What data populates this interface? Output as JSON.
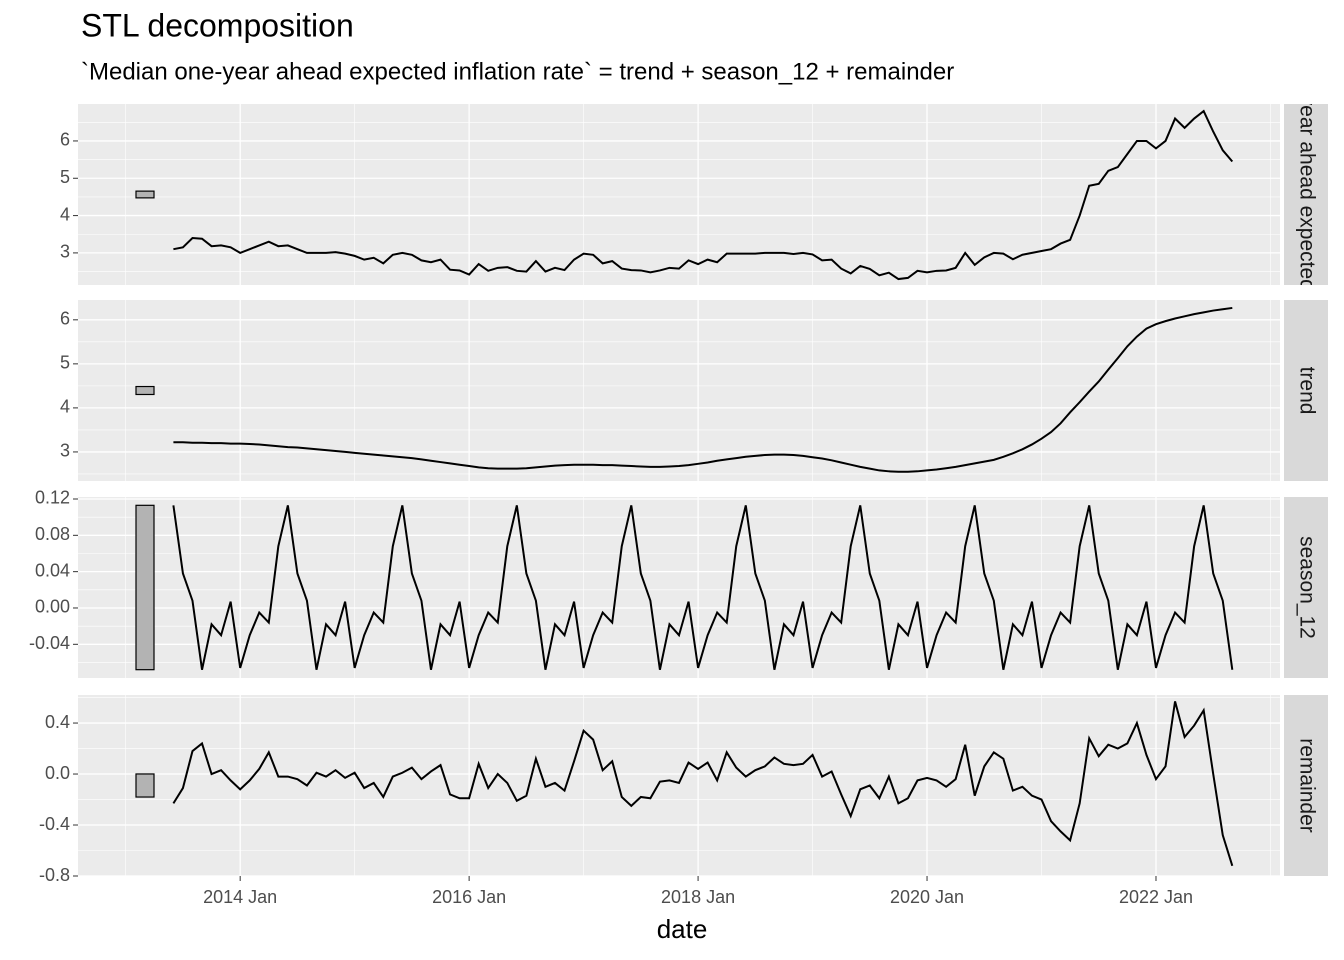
{
  "chart_data": {
    "type": "line",
    "title": "STL decomposition",
    "subtitle": "`Median one-year ahead expected inflation rate` = trend + season_12 + remainder",
    "x_label": "date",
    "color": "#000000",
    "grid": true,
    "x": [
      "2013 Jun",
      "2013 Jul",
      "2013 Aug",
      "2013 Sep",
      "2013 Oct",
      "2013 Nov",
      "2013 Dec",
      "2014 Jan",
      "2014 Feb",
      "2014 Mar",
      "2014 Apr",
      "2014 May",
      "2014 Jun",
      "2014 Jul",
      "2014 Aug",
      "2014 Sep",
      "2014 Oct",
      "2014 Nov",
      "2014 Dec",
      "2015 Jan",
      "2015 Feb",
      "2015 Mar",
      "2015 Apr",
      "2015 May",
      "2015 Jun",
      "2015 Jul",
      "2015 Aug",
      "2015 Sep",
      "2015 Oct",
      "2015 Nov",
      "2015 Dec",
      "2016 Jan",
      "2016 Feb",
      "2016 Mar",
      "2016 Apr",
      "2016 May",
      "2016 Jun",
      "2016 Jul",
      "2016 Aug",
      "2016 Sep",
      "2016 Oct",
      "2016 Nov",
      "2016 Dec",
      "2017 Jan",
      "2017 Feb",
      "2017 Mar",
      "2017 Apr",
      "2017 May",
      "2017 Jun",
      "2017 Jul",
      "2017 Aug",
      "2017 Sep",
      "2017 Oct",
      "2017 Nov",
      "2017 Dec",
      "2018 Jan",
      "2018 Feb",
      "2018 Mar",
      "2018 Apr",
      "2018 May",
      "2018 Jun",
      "2018 Jul",
      "2018 Aug",
      "2018 Sep",
      "2018 Oct",
      "2018 Nov",
      "2018 Dec",
      "2019 Jan",
      "2019 Feb",
      "2019 Mar",
      "2019 Apr",
      "2019 May",
      "2019 Jun",
      "2019 Jul",
      "2019 Aug",
      "2019 Sep",
      "2019 Oct",
      "2019 Nov",
      "2019 Dec",
      "2020 Jan",
      "2020 Feb",
      "2020 Mar",
      "2020 Apr",
      "2020 May",
      "2020 Jun",
      "2020 Jul",
      "2020 Aug",
      "2020 Sep",
      "2020 Oct",
      "2020 Nov",
      "2020 Dec",
      "2021 Jan",
      "2021 Feb",
      "2021 Mar",
      "2021 Apr",
      "2021 May",
      "2021 Jun",
      "2021 Jul",
      "2021 Aug",
      "2021 Sep",
      "2021 Oct",
      "2021 Nov",
      "2021 Dec",
      "2022 Jan",
      "2022 Feb",
      "2022 Mar",
      "2022 Apr",
      "2022 May",
      "2022 Jun",
      "2022 Jul",
      "2022 Aug",
      "2022 Sep"
    ],
    "xlim": [
      "2012 Aug",
      "2023 Feb"
    ],
    "xticks": [
      "2014 Jan",
      "2016 Jan",
      "2018 Jan",
      "2020 Jan",
      "2022 Jan"
    ],
    "panels": [
      {
        "name": "Median one-year ahead expected inflation rate",
        "values": [
          3.1,
          3.15,
          3.4,
          3.38,
          3.18,
          3.2,
          3.15,
          3.0,
          3.1,
          3.2,
          3.3,
          3.18,
          3.2,
          3.1,
          3.0,
          3.0,
          3.0,
          3.02,
          2.98,
          2.92,
          2.82,
          2.87,
          2.72,
          2.95,
          3.0,
          2.95,
          2.8,
          2.75,
          2.82,
          2.55,
          2.53,
          2.42,
          2.7,
          2.52,
          2.6,
          2.62,
          2.52,
          2.5,
          2.78,
          2.5,
          2.6,
          2.54,
          2.82,
          2.98,
          2.95,
          2.72,
          2.78,
          2.58,
          2.54,
          2.53,
          2.48,
          2.53,
          2.6,
          2.58,
          2.8,
          2.7,
          2.82,
          2.75,
          2.98,
          2.98,
          2.98,
          2.98,
          3.0,
          3.0,
          3.0,
          2.97,
          3.0,
          2.96,
          2.8,
          2.82,
          2.58,
          2.45,
          2.65,
          2.57,
          2.4,
          2.47,
          2.3,
          2.33,
          2.52,
          2.48,
          2.52,
          2.53,
          2.6,
          3.0,
          2.68,
          2.88,
          3.0,
          2.98,
          2.83,
          2.95,
          3.0,
          3.05,
          3.1,
          3.25,
          3.35,
          4.0,
          4.8,
          4.85,
          5.2,
          5.3,
          5.65,
          6.0,
          6.0,
          5.8,
          6.0,
          6.6,
          6.35,
          6.6,
          6.8,
          6.25,
          5.75,
          5.45
        ],
        "ylim": [
          2.14,
          6.99
        ],
        "yticks": [
          3,
          4,
          5,
          6
        ]
      },
      {
        "name": "trend",
        "values": [
          3.22,
          3.22,
          3.21,
          3.21,
          3.2,
          3.2,
          3.19,
          3.19,
          3.18,
          3.17,
          3.15,
          3.13,
          3.11,
          3.1,
          3.08,
          3.06,
          3.04,
          3.02,
          3.0,
          2.98,
          2.96,
          2.94,
          2.92,
          2.9,
          2.88,
          2.86,
          2.83,
          2.8,
          2.77,
          2.74,
          2.71,
          2.68,
          2.65,
          2.63,
          2.62,
          2.62,
          2.62,
          2.63,
          2.65,
          2.67,
          2.69,
          2.7,
          2.71,
          2.71,
          2.71,
          2.7,
          2.7,
          2.69,
          2.68,
          2.67,
          2.66,
          2.66,
          2.67,
          2.68,
          2.7,
          2.73,
          2.76,
          2.8,
          2.83,
          2.86,
          2.89,
          2.91,
          2.93,
          2.94,
          2.94,
          2.93,
          2.91,
          2.88,
          2.85,
          2.81,
          2.76,
          2.71,
          2.66,
          2.62,
          2.58,
          2.56,
          2.55,
          2.55,
          2.56,
          2.58,
          2.6,
          2.63,
          2.66,
          2.7,
          2.74,
          2.78,
          2.82,
          2.89,
          2.97,
          3.06,
          3.17,
          3.3,
          3.45,
          3.65,
          3.9,
          4.13,
          4.37,
          4.6,
          4.87,
          5.13,
          5.4,
          5.62,
          5.8,
          5.9,
          5.97,
          6.03,
          6.08,
          6.13,
          6.17,
          6.21,
          6.24,
          6.27
        ],
        "ylim": [
          2.34,
          6.45
        ],
        "yticks": [
          3,
          4,
          5,
          6
        ]
      },
      {
        "name": "season_12",
        "values": [
          0.113,
          0.038,
          0.008,
          -0.068,
          -0.018,
          -0.03,
          0.007,
          -0.066,
          -0.03,
          -0.005,
          -0.016,
          0.068,
          0.113,
          0.038,
          0.008,
          -0.068,
          -0.018,
          -0.03,
          0.007,
          -0.066,
          -0.03,
          -0.005,
          -0.016,
          0.068,
          0.113,
          0.038,
          0.008,
          -0.068,
          -0.018,
          -0.03,
          0.007,
          -0.066,
          -0.03,
          -0.005,
          -0.016,
          0.068,
          0.113,
          0.038,
          0.008,
          -0.068,
          -0.018,
          -0.03,
          0.007,
          -0.066,
          -0.03,
          -0.005,
          -0.016,
          0.068,
          0.113,
          0.038,
          0.008,
          -0.068,
          -0.018,
          -0.03,
          0.007,
          -0.066,
          -0.03,
          -0.005,
          -0.016,
          0.068,
          0.113,
          0.038,
          0.008,
          -0.068,
          -0.018,
          -0.03,
          0.007,
          -0.066,
          -0.03,
          -0.005,
          -0.016,
          0.068,
          0.113,
          0.038,
          0.008,
          -0.068,
          -0.018,
          -0.03,
          0.007,
          -0.066,
          -0.03,
          -0.005,
          -0.016,
          0.068,
          0.113,
          0.038,
          0.008,
          -0.068,
          -0.018,
          -0.03,
          0.007,
          -0.066,
          -0.03,
          -0.005,
          -0.016,
          0.068,
          0.113,
          0.038,
          0.008,
          -0.068,
          -0.018,
          -0.03,
          0.007,
          -0.066,
          -0.03,
          -0.005,
          -0.016,
          0.068,
          0.113,
          0.038,
          0.008,
          -0.068
        ],
        "ylim": [
          -0.0771,
          0.1222
        ],
        "yticks": [
          -0.04,
          {
            "value": 0,
            "label": "0.00"
          },
          0.04,
          0.08,
          0.12
        ]
      },
      {
        "name": "remainder",
        "values": [
          -0.23,
          -0.11,
          0.18,
          0.24,
          0,
          0.03,
          -0.05,
          -0.12,
          -0.05,
          0.04,
          0.17,
          -0.02,
          -0.02,
          -0.04,
          -0.09,
          0.01,
          -0.02,
          0.03,
          -0.03,
          0.01,
          -0.11,
          -0.07,
          -0.18,
          -0.02,
          0.01,
          0.05,
          -0.04,
          0.02,
          0.07,
          -0.16,
          -0.19,
          -0.19,
          0.08,
          -0.11,
          0,
          -0.07,
          -0.21,
          -0.17,
          0.12,
          -0.1,
          -0.07,
          -0.13,
          0.1,
          0.34,
          0.27,
          0.03,
          0.1,
          -0.18,
          -0.25,
          -0.18,
          -0.19,
          -0.06,
          -0.05,
          -0.07,
          0.09,
          0.04,
          0.09,
          -0.05,
          0.17,
          0.05,
          -0.02,
          0.03,
          0.06,
          0.13,
          0.08,
          0.07,
          0.08,
          0.15,
          -0.02,
          0.02,
          -0.16,
          -0.33,
          -0.12,
          -0.09,
          -0.19,
          -0.02,
          -0.23,
          -0.19,
          -0.05,
          -0.03,
          -0.05,
          -0.1,
          -0.04,
          0.23,
          -0.17,
          0.06,
          0.17,
          0.12,
          -0.13,
          -0.1,
          -0.17,
          -0.2,
          -0.37,
          -0.45,
          -0.52,
          -0.23,
          0.28,
          0.14,
          0.23,
          0.2,
          0.24,
          0.4,
          0.15,
          -0.04,
          0.06,
          0.57,
          0.29,
          0.38,
          0.5,
          0,
          -0.48,
          -0.72
        ],
        "ylim": [
          -0.8,
          0.62
        ],
        "yticks": [
          {
            "value": -0.8,
            "label": "-0.8"
          },
          -0.4,
          {
            "value": 0,
            "label": "0.0"
          },
          0.4
        ]
      }
    ]
  }
}
